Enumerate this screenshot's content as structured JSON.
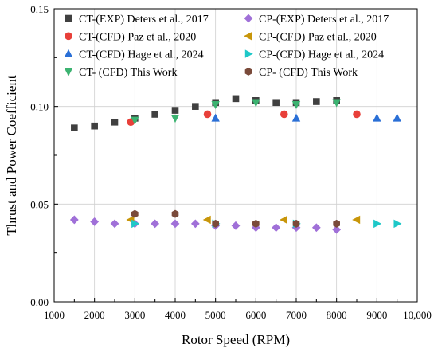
{
  "chart_data": {
    "type": "scatter",
    "title": "",
    "xlabel": "Rotor Speed (RPM)",
    "ylabel": "Thrust and Power Coefficient",
    "xlim": [
      1000,
      10000
    ],
    "ylim": [
      0.0,
      0.15
    ],
    "x_ticks": [
      1000,
      2000,
      3000,
      4000,
      5000,
      6000,
      7000,
      8000,
      9000,
      10000
    ],
    "x_tick_labels": [
      "1000",
      "2000",
      "3000",
      "4000",
      "5000",
      "6000",
      "7000",
      "8000",
      "9000",
      "10,000"
    ],
    "y_ticks": [
      0.0,
      0.05,
      0.1,
      0.15
    ],
    "y_tick_labels": [
      "0.00",
      "0.05",
      "0.10",
      "0.15"
    ],
    "grid": true,
    "legend_position": "top",
    "series": [
      {
        "name": "CT-(EXP) Deters et al., 2017",
        "color": "#404040",
        "marker": "square",
        "x": [
          1500,
          2000,
          2500,
          3000,
          3500,
          4000,
          4500,
          5000,
          5500,
          6000,
          6500,
          7000,
          7500,
          8000
        ],
        "y": [
          0.089,
          0.09,
          0.092,
          0.094,
          0.096,
          0.098,
          0.1,
          0.102,
          0.104,
          0.103,
          0.102,
          0.102,
          0.1025,
          0.103
        ]
      },
      {
        "name": "CT-(CFD) Paz et al., 2020",
        "color": "#e8403a",
        "marker": "circle",
        "x": [
          2900,
          4800,
          6700,
          8500
        ],
        "y": [
          0.092,
          0.096,
          0.096,
          0.096
        ]
      },
      {
        "name": "CT-(CFD) Hage et al., 2024",
        "color": "#2a6fd6",
        "marker": "triangle-up",
        "x": [
          5000,
          7000,
          9000,
          9500
        ],
        "y": [
          0.094,
          0.094,
          0.094,
          0.094
        ]
      },
      {
        "name": "CT- (CFD) This Work",
        "color": "#3cb371",
        "marker": "triangle-down",
        "x": [
          3000,
          4000,
          5000,
          6000,
          7000,
          8000
        ],
        "y": [
          0.093,
          0.094,
          0.101,
          0.102,
          0.101,
          0.102
        ]
      },
      {
        "name": "CP-(EXP) Deters et al., 2017",
        "color": "#a070d8",
        "marker": "diamond",
        "x": [
          1500,
          2000,
          2500,
          3000,
          3500,
          4000,
          4500,
          5000,
          5500,
          6000,
          6500,
          7000,
          7500,
          8000
        ],
        "y": [
          0.042,
          0.041,
          0.04,
          0.04,
          0.04,
          0.04,
          0.04,
          0.039,
          0.039,
          0.038,
          0.038,
          0.038,
          0.038,
          0.037
        ]
      },
      {
        "name": "CP-(CFD) Paz et al., 2020",
        "color": "#c8960a",
        "marker": "triangle-left",
        "x": [
          2900,
          4800,
          6700,
          8500
        ],
        "y": [
          0.042,
          0.042,
          0.042,
          0.042
        ]
      },
      {
        "name": "CP-(CFD) Hage et al., 2024",
        "color": "#1ec8c8",
        "marker": "triangle-right",
        "x": [
          3000,
          5000,
          7000,
          9000,
          9500
        ],
        "y": [
          0.04,
          0.04,
          0.04,
          0.04,
          0.04
        ]
      },
      {
        "name": "CP- (CFD) This Work",
        "color": "#7a4a3a",
        "marker": "hexagon",
        "x": [
          3000,
          4000,
          5000,
          6000,
          7000,
          8000
        ],
        "y": [
          0.045,
          0.045,
          0.04,
          0.04,
          0.04,
          0.04
        ]
      }
    ]
  }
}
